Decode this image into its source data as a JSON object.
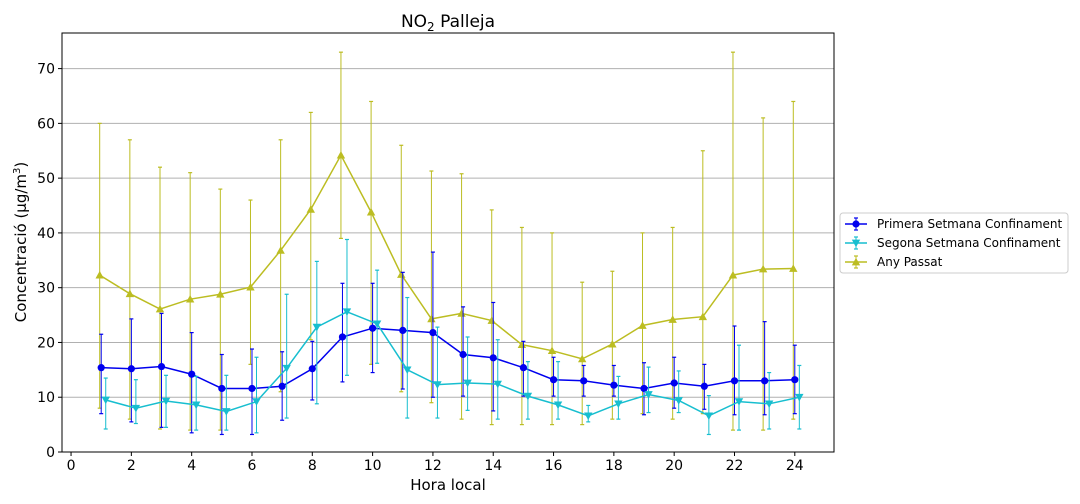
{
  "chart_data": {
    "type": "line",
    "title": "NO2 Palleja",
    "title_main": "NO",
    "title_sub": "2",
    "title_rest": " Palleja",
    "xlabel": "Hora local",
    "ylabel": "Concentració (μg/m³)",
    "ylabel_main": "Concentració (μg/m",
    "ylabel_sup": "3",
    "ylabel_end": ")",
    "xlim": [
      -0.3,
      25.3
    ],
    "ylim": [
      0,
      76.5
    ],
    "xticks": [
      0,
      2,
      4,
      6,
      8,
      10,
      12,
      14,
      16,
      18,
      20,
      22,
      24
    ],
    "yticks": [
      0,
      10,
      20,
      30,
      40,
      50,
      60,
      70
    ],
    "grid": "horizontal",
    "legend_position": "outside-right",
    "series": [
      {
        "name": "Primera Setmana Confinament",
        "color": "#0000ee",
        "marker": "circle",
        "x_offset": 0.0,
        "x": [
          1,
          2,
          3,
          4,
          5,
          6,
          7,
          8,
          9,
          10,
          11,
          12,
          13,
          14,
          15,
          16,
          17,
          18,
          19,
          20,
          21,
          22,
          23,
          24
        ],
        "values": [
          15.4,
          15.2,
          15.6,
          14.2,
          11.6,
          11.6,
          12.0,
          15.2,
          21.0,
          22.6,
          22.2,
          21.8,
          17.8,
          17.2,
          15.4,
          13.2,
          13.0,
          12.2,
          11.6,
          12.6,
          12.0,
          13.0,
          13.0,
          13.2
        ],
        "err_low": [
          7.0,
          5.5,
          4.5,
          3.5,
          3.2,
          3.2,
          5.8,
          9.5,
          12.8,
          14.5,
          11.5,
          10.0,
          10.2,
          7.5,
          10.2,
          10.2,
          10.2,
          10.2,
          6.8,
          8.0,
          7.8,
          6.8,
          6.8,
          7.0
        ],
        "err_high": [
          21.5,
          24.3,
          25.3,
          21.8,
          17.8,
          18.8,
          18.3,
          20.2,
          30.8,
          30.8,
          32.8,
          36.5,
          26.5,
          27.3,
          20.2,
          17.3,
          15.8,
          15.8,
          16.3,
          17.3,
          16.0,
          23.0,
          23.8,
          19.5
        ]
      },
      {
        "name": "Segona Setmana Confinament",
        "color": "#17becf",
        "marker": "triangle-down",
        "x_offset": 0.15,
        "x": [
          1,
          2,
          3,
          4,
          5,
          6,
          7,
          8,
          9,
          10,
          11,
          12,
          13,
          14,
          15,
          16,
          17,
          18,
          19,
          20,
          21,
          22,
          23,
          24
        ],
        "values": [
          9.5,
          8.0,
          9.3,
          8.6,
          7.4,
          9.2,
          15.3,
          22.8,
          25.6,
          23.4,
          15.0,
          12.3,
          12.6,
          12.4,
          10.2,
          8.6,
          6.6,
          8.8,
          10.5,
          9.4,
          6.6,
          9.2,
          8.8,
          10.0
        ],
        "err_low": [
          4.2,
          5.2,
          4.5,
          4.0,
          4.0,
          3.5,
          6.2,
          8.8,
          14.0,
          16.2,
          6.2,
          6.2,
          7.6,
          6.0,
          6.0,
          6.0,
          5.5,
          6.0,
          7.2,
          7.2,
          3.2,
          4.0,
          4.2,
          4.2
        ],
        "err_high": [
          13.5,
          13.2,
          14.0,
          13.8,
          14.0,
          17.3,
          28.8,
          34.8,
          38.8,
          33.2,
          28.2,
          22.8,
          21.0,
          20.5,
          16.5,
          16.5,
          8.5,
          13.8,
          15.5,
          14.8,
          10.3,
          19.5,
          14.5,
          15.8
        ]
      },
      {
        "name": "Any Passat",
        "color": "#bcbd22",
        "marker": "triangle-up",
        "x_offset": -0.05,
        "x": [
          1,
          2,
          3,
          4,
          5,
          6,
          7,
          8,
          9,
          10,
          11,
          12,
          13,
          14,
          15,
          16,
          17,
          18,
          19,
          20,
          21,
          22,
          23,
          24
        ],
        "values": [
          32.3,
          28.9,
          26.1,
          27.9,
          28.8,
          30.1,
          36.8,
          44.3,
          54.2,
          43.8,
          32.4,
          24.3,
          25.3,
          24.0,
          19.6,
          18.5,
          17.0,
          19.7,
          23.1,
          24.2,
          24.7,
          32.3,
          33.4,
          33.5
        ],
        "err_low": [
          8.0,
          6.0,
          4.2,
          4.0,
          4.0,
          16.0,
          11.0,
          20.5,
          39.0,
          16.0,
          11.0,
          9.0,
          6.0,
          5.0,
          5.0,
          5.0,
          5.0,
          6.0,
          7.0,
          6.0,
          7.0,
          4.0,
          4.0,
          6.0
        ],
        "err_high": [
          60.0,
          57.0,
          52.0,
          51.0,
          48.0,
          46.0,
          57.0,
          62.0,
          73.0,
          64.0,
          56.0,
          51.3,
          50.8,
          44.2,
          41.0,
          40.0,
          31.0,
          33.0,
          40.0,
          41.0,
          55.0,
          73.0,
          61.0,
          64.0
        ]
      }
    ]
  }
}
